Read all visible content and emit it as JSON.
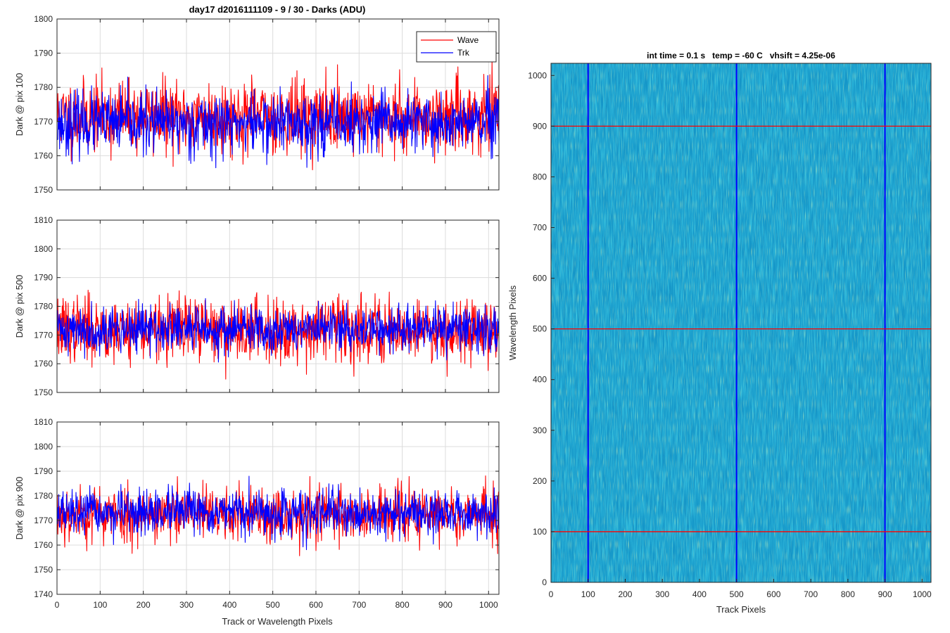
{
  "figure": {
    "suptitle": "day17 d2016111109 - 9 / 30 - Darks (ADU)"
  },
  "chart_data": [
    {
      "type": "line",
      "id": "dark-pix100",
      "title": "day17 d2016111109 - 9 / 30 - Darks (ADU)",
      "xlabel": "",
      "ylabel": "Dark @ pix 100",
      "xlim": [
        0,
        1024
      ],
      "ylim": [
        1750,
        1800
      ],
      "xticks": [
        0,
        100,
        200,
        300,
        400,
        500,
        600,
        700,
        800,
        900,
        1000
      ],
      "yticks": [
        1750,
        1760,
        1770,
        1780,
        1790,
        1800
      ],
      "grid": true,
      "legend": "top-right",
      "series": [
        {
          "name": "Wave",
          "color": "#ff0000",
          "mean": 1771.5,
          "std": 6.5,
          "seed": 11,
          "min": 1755,
          "max": 1793
        },
        {
          "name": "Trk",
          "color": "#0000ff",
          "mean": 1769.5,
          "std": 5.5,
          "seed": 23,
          "min": 1750,
          "max": 1796
        }
      ]
    },
    {
      "type": "line",
      "id": "dark-pix500",
      "title": "",
      "xlabel": "",
      "ylabel": "Dark @ pix 500",
      "xlim": [
        0,
        1024
      ],
      "ylim": [
        1750,
        1810
      ],
      "xticks": [
        0,
        100,
        200,
        300,
        400,
        500,
        600,
        700,
        800,
        900,
        1000
      ],
      "yticks": [
        1750,
        1760,
        1770,
        1780,
        1790,
        1800,
        1810
      ],
      "grid": true,
      "series": [
        {
          "name": "Wave",
          "color": "#ff0000",
          "mean": 1772,
          "std": 7,
          "seed": 37,
          "min": 1750,
          "max": 1804
        },
        {
          "name": "Trk",
          "color": "#0000ff",
          "mean": 1772,
          "std": 5,
          "seed": 41,
          "min": 1753,
          "max": 1793
        }
      ]
    },
    {
      "type": "line",
      "id": "dark-pix900",
      "title": "",
      "xlabel": "Track or Wavelength Pixels",
      "ylabel": "Dark @ pix 900",
      "xlim": [
        0,
        1024
      ],
      "ylim": [
        1740,
        1810
      ],
      "xticks": [
        0,
        100,
        200,
        300,
        400,
        500,
        600,
        700,
        800,
        900,
        1000
      ],
      "yticks": [
        1740,
        1750,
        1760,
        1770,
        1780,
        1790,
        1800,
        1810
      ],
      "grid": true,
      "series": [
        {
          "name": "Wave",
          "color": "#ff0000",
          "mean": 1772.5,
          "std": 7,
          "seed": 53,
          "min": 1755,
          "max": 1805
        },
        {
          "name": "Trk",
          "color": "#0000ff",
          "mean": 1773,
          "std": 5.5,
          "seed": 67,
          "min": 1748,
          "max": 1796
        }
      ]
    },
    {
      "type": "heatmap",
      "id": "dark-frame",
      "title": "int time = 0.1 s   temp = -60 C   vhsift = 4.25e-06",
      "xlabel": "Track Pixels",
      "ylabel": "Wavelength Pixels",
      "xlim": [
        0,
        1024
      ],
      "ylim": [
        0,
        1024
      ],
      "xticks": [
        0,
        100,
        200,
        300,
        400,
        500,
        600,
        700,
        800,
        900,
        1000
      ],
      "yticks": [
        0,
        100,
        200,
        300,
        400,
        500,
        600,
        700,
        800,
        900,
        1000
      ],
      "colormap_colors": [
        "#0a5cb8",
        "#1a8fd0",
        "#20a8c8",
        "#3cb8a0",
        "#8cc870"
      ],
      "vertical_lines": {
        "x": [
          100,
          500,
          900
        ],
        "color": "#0000ff"
      },
      "horizontal_lines": {
        "y": [
          100,
          500,
          900
        ],
        "color": "#ff0000"
      }
    }
  ]
}
